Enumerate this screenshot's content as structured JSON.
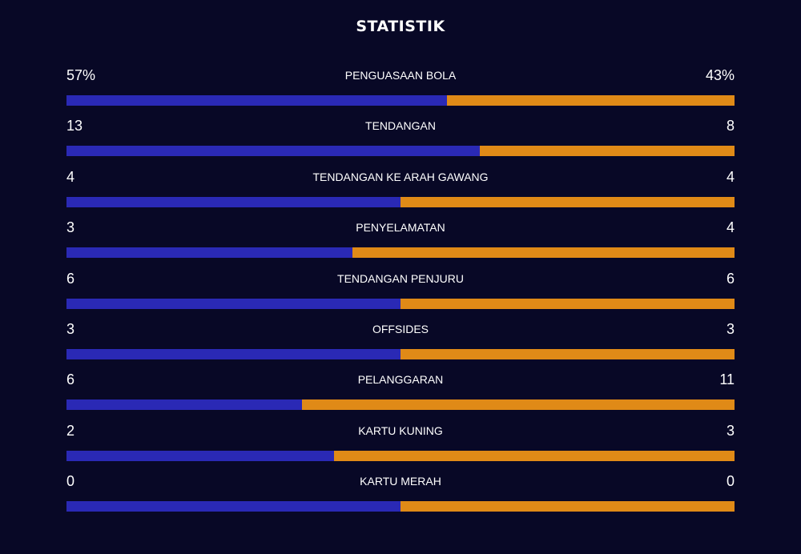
{
  "title": "STATISTIK",
  "colors": {
    "background": "#080826",
    "home": "#2a29b5",
    "away": "#e08a17"
  },
  "stats": [
    {
      "label": "PENGUASAAN BOLA",
      "home": "57%",
      "away": "43%",
      "home_value": 57,
      "away_value": 43
    },
    {
      "label": "TENDANGAN",
      "home": "13",
      "away": "8",
      "home_value": 13,
      "away_value": 8
    },
    {
      "label": "TENDANGAN KE ARAH GAWANG",
      "home": "4",
      "away": "4",
      "home_value": 4,
      "away_value": 4
    },
    {
      "label": "PENYELAMATAN",
      "home": "3",
      "away": "4",
      "home_value": 3,
      "away_value": 4
    },
    {
      "label": "TENDANGAN PENJURU",
      "home": "6",
      "away": "6",
      "home_value": 6,
      "away_value": 6
    },
    {
      "label": "OFFSIDES",
      "home": "3",
      "away": "3",
      "home_value": 3,
      "away_value": 3
    },
    {
      "label": "PELANGGARAN",
      "home": "6",
      "away": "11",
      "home_value": 6,
      "away_value": 11
    },
    {
      "label": "KARTU KUNING",
      "home": "2",
      "away": "3",
      "home_value": 2,
      "away_value": 3
    },
    {
      "label": "KARTU MERAH",
      "home": "0",
      "away": "0",
      "home_value": 0,
      "away_value": 0
    }
  ]
}
